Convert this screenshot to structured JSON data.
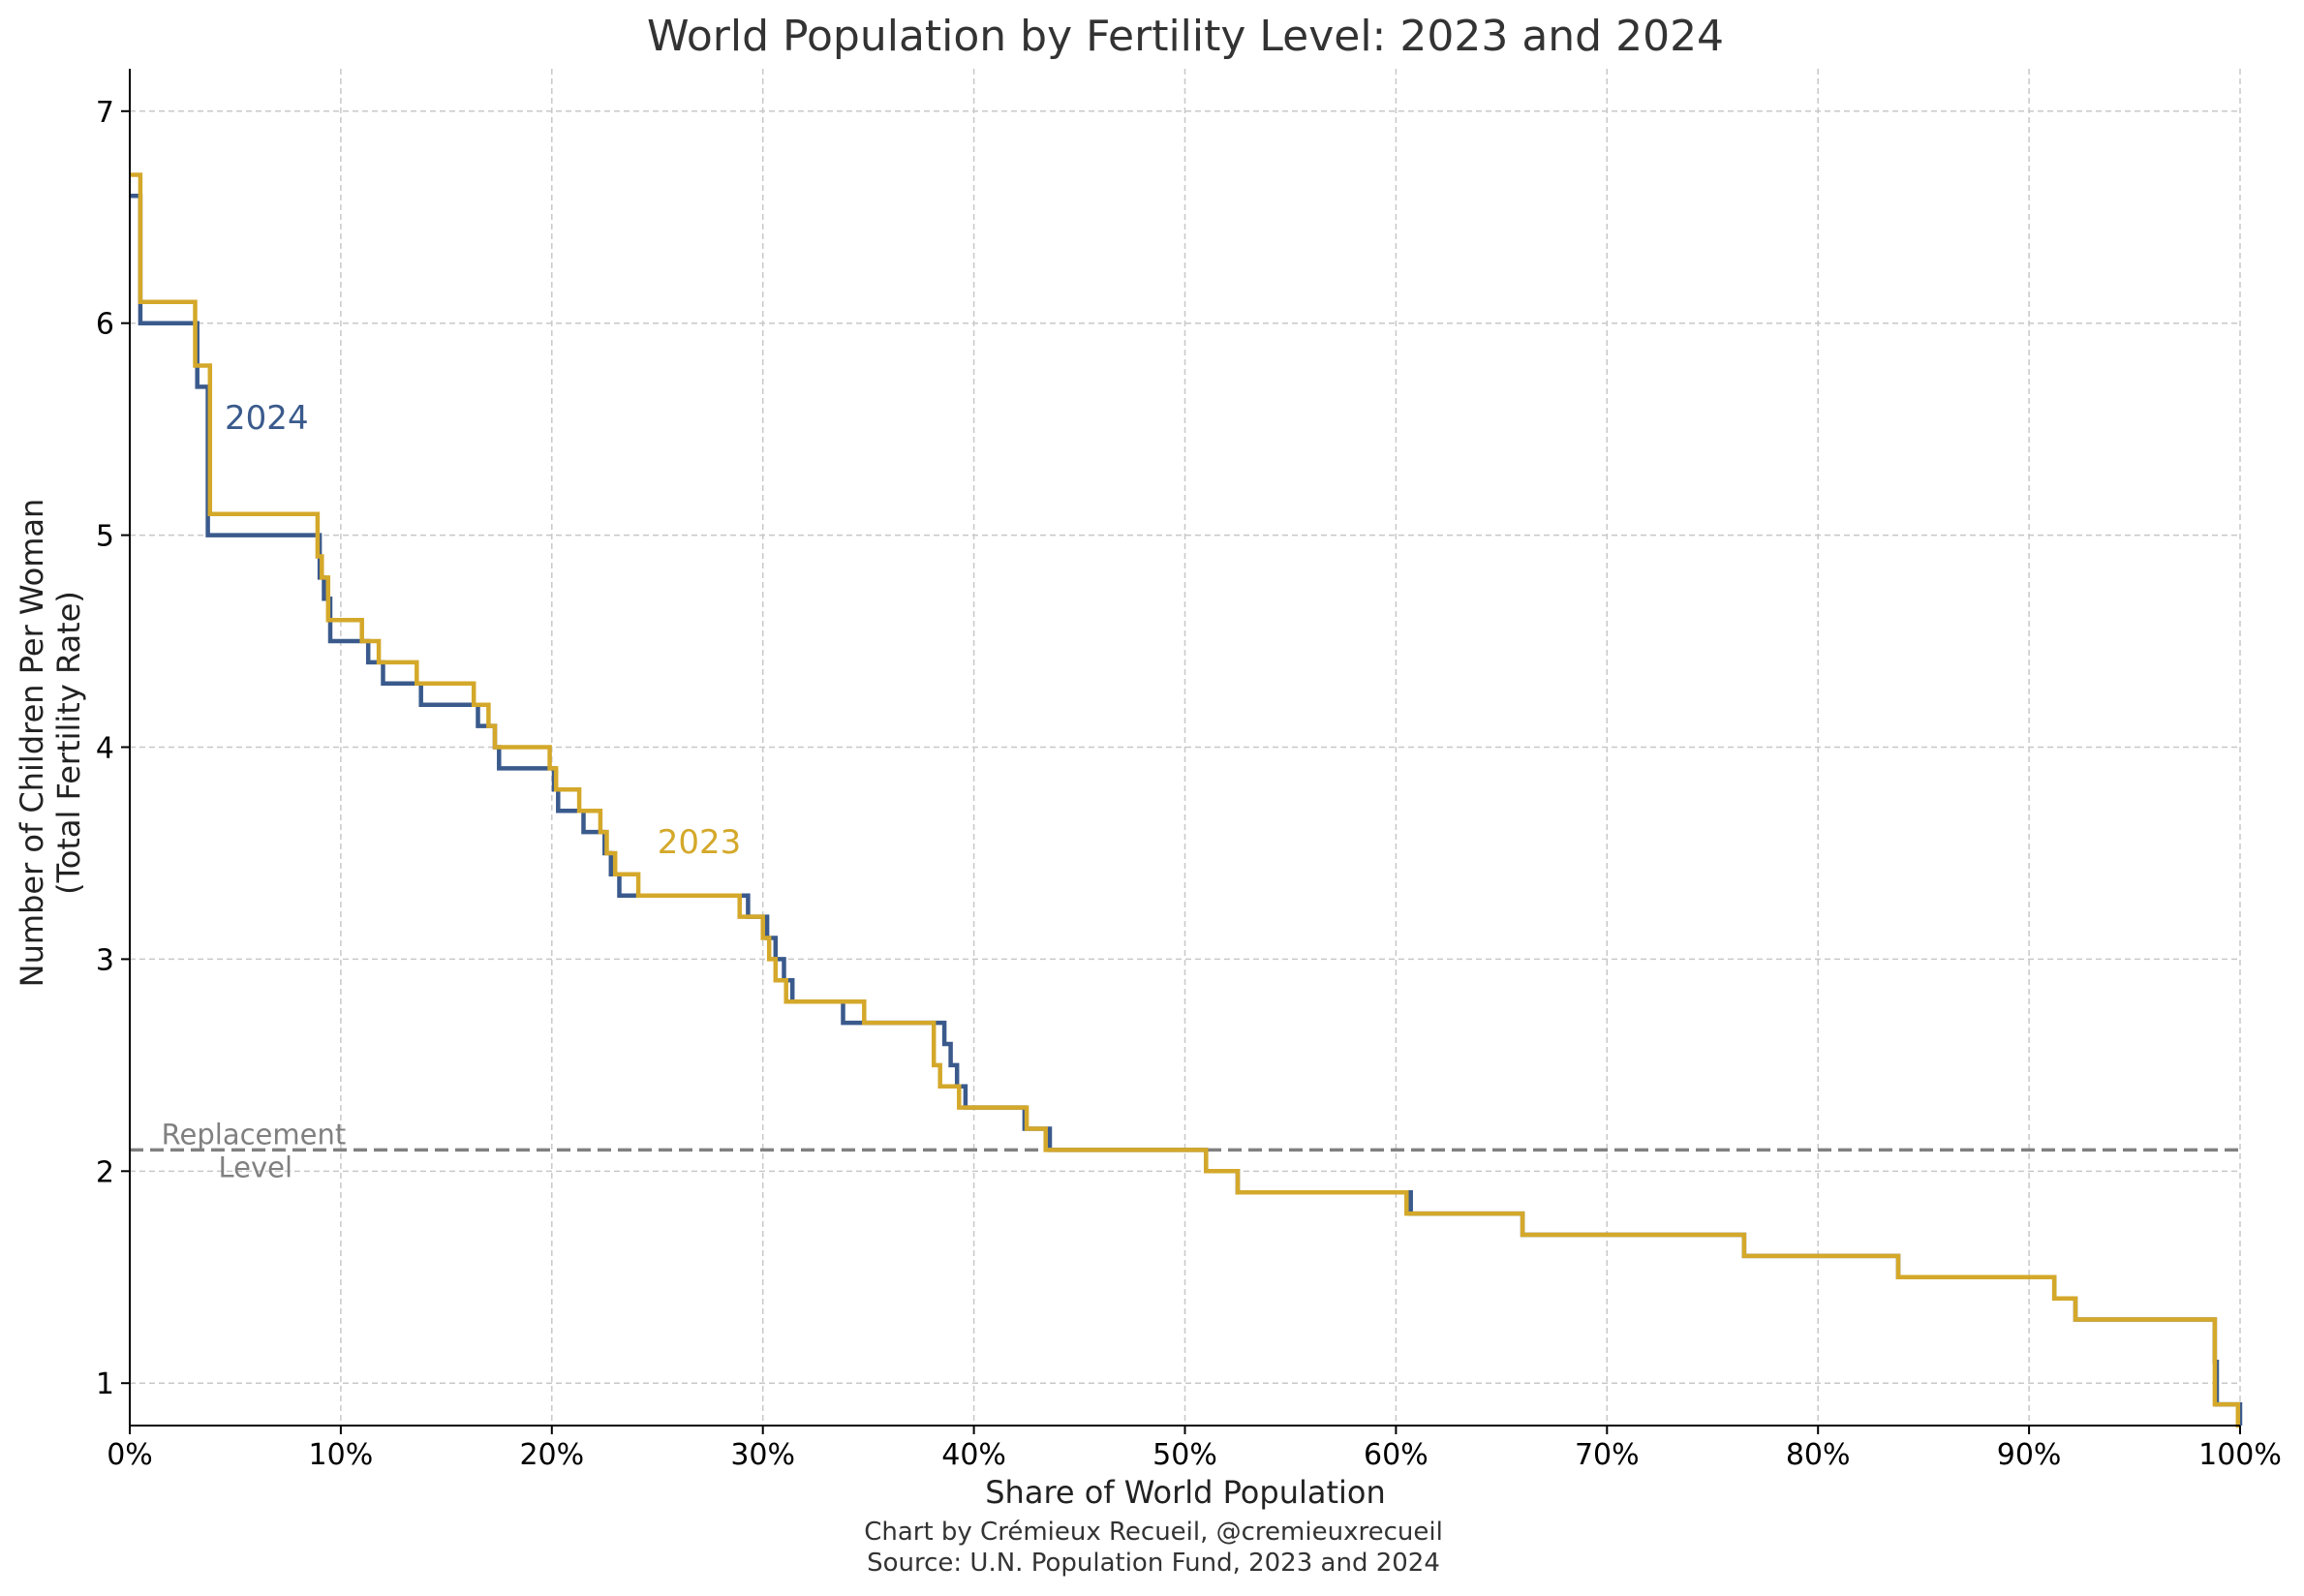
{
  "chart_data": {
    "type": "line",
    "step": true,
    "title": "World Population by Fertility Level: 2023 and 2024",
    "xlabel": "Share of World Population",
    "ylabel": [
      "Number of Children Per Woman",
      "(Total Fertility Rate)"
    ],
    "xlim": [
      0,
      100
    ],
    "ylim": [
      0.8,
      7.2
    ],
    "xticks": [
      0,
      10,
      20,
      30,
      40,
      50,
      60,
      70,
      80,
      90,
      100
    ],
    "xtick_labels": [
      "0%",
      "10%",
      "20%",
      "30%",
      "40%",
      "50%",
      "60%",
      "70%",
      "80%",
      "90%",
      "100%"
    ],
    "yticks": [
      1,
      2,
      3,
      4,
      5,
      6,
      7
    ],
    "ytick_labels": [
      "1",
      "2",
      "3",
      "4",
      "5",
      "6",
      "7"
    ],
    "grid": true,
    "reference_line": {
      "y": 2.1,
      "label_line1": "Replacement",
      "label_line2": "Level",
      "color": "#808080"
    },
    "series": [
      {
        "name": "2024",
        "label": "2024",
        "color": "#3a5a8c",
        "x": [
          0,
          0.5,
          3.2,
          3.7,
          9.0,
          9.2,
          9.5,
          11.3,
          12.0,
          13.8,
          16.5,
          17.3,
          17.5,
          20.1,
          20.3,
          21.5,
          22.5,
          22.8,
          23.2,
          29.3,
          30.2,
          30.6,
          31.0,
          31.4,
          33.8,
          35.0,
          38.6,
          38.9,
          39.2,
          39.6,
          42.4,
          42.9,
          43.6,
          51.0,
          52.5,
          60.7,
          66.0,
          76.5,
          83.8,
          91.2,
          92.2,
          98.8,
          98.9,
          100
        ],
        "y": [
          6.6,
          6.0,
          5.7,
          5.0,
          4.8,
          4.7,
          4.5,
          4.4,
          4.3,
          4.2,
          4.1,
          4.0,
          3.9,
          3.8,
          3.7,
          3.6,
          3.5,
          3.4,
          3.3,
          3.2,
          3.1,
          3.0,
          2.9,
          2.8,
          2.7,
          2.7,
          2.6,
          2.5,
          2.4,
          2.3,
          2.2,
          2.2,
          2.1,
          2.0,
          1.9,
          1.8,
          1.7,
          1.6,
          1.5,
          1.4,
          1.3,
          1.1,
          0.9,
          0.8
        ]
      },
      {
        "name": "2023",
        "label": "2023",
        "color": "#d4a82a",
        "x": [
          0,
          0.5,
          3.1,
          3.8,
          8.9,
          9.1,
          9.4,
          11.0,
          11.8,
          13.6,
          16.3,
          17.0,
          17.3,
          19.9,
          20.2,
          21.3,
          22.3,
          22.6,
          23.0,
          24.1,
          28.9,
          30.0,
          30.3,
          30.6,
          31.1,
          34.8,
          38.1,
          38.4,
          38.7,
          39.3,
          42.5,
          43.4,
          51.0,
          52.5,
          60.5,
          66.0,
          76.5,
          83.8,
          91.2,
          92.2,
          98.8,
          99.9,
          100
        ],
        "y": [
          6.7,
          6.1,
          5.8,
          5.1,
          4.9,
          4.8,
          4.6,
          4.5,
          4.4,
          4.3,
          4.2,
          4.1,
          4.0,
          3.9,
          3.8,
          3.7,
          3.6,
          3.5,
          3.4,
          3.3,
          3.2,
          3.1,
          3.0,
          2.9,
          2.8,
          2.7,
          2.5,
          2.4,
          2.4,
          2.3,
          2.2,
          2.1,
          2.0,
          1.9,
          1.8,
          1.7,
          1.6,
          1.5,
          1.4,
          1.3,
          0.9,
          0.8,
          0.8
        ]
      }
    ],
    "annotations": [
      {
        "text": "2024",
        "series": "2024",
        "x": 4.5,
        "y": 5.5
      },
      {
        "text": "2023",
        "series": "2023",
        "x": 25.0,
        "y": 3.5
      }
    ],
    "credit_line1": "Chart by Crémieux Recueil, @cremieuxrecueil",
    "credit_line2": "Source: U.N. Population Fund, 2023 and 2024"
  }
}
